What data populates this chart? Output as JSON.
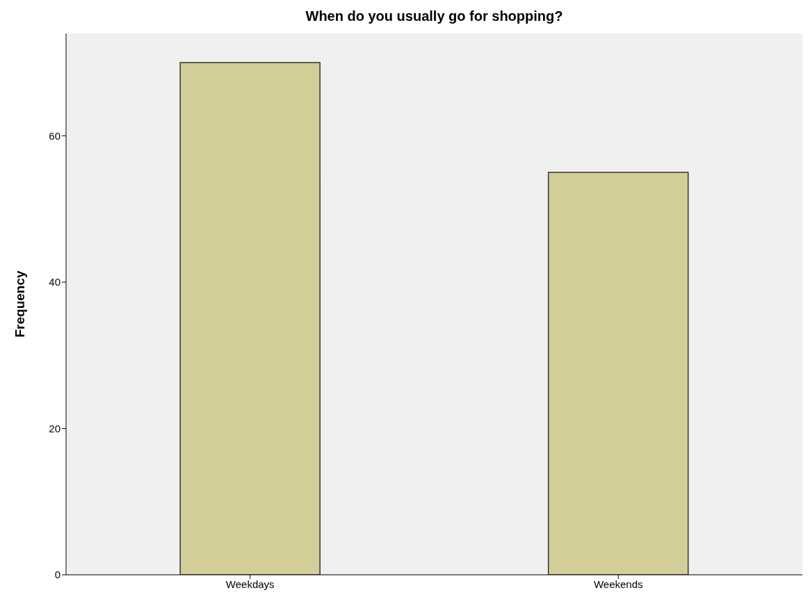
{
  "chart_data": {
    "type": "bar",
    "title": "When do you usually go for shopping?",
    "ylabel": "Frequency",
    "categories": [
      "Weekdays",
      "Weekends"
    ],
    "values": [
      70,
      55
    ],
    "color": "#d3ce97",
    "ylim": [
      0,
      74
    ],
    "yticks": [
      0,
      20,
      40,
      60
    ],
    "grid": false
  }
}
